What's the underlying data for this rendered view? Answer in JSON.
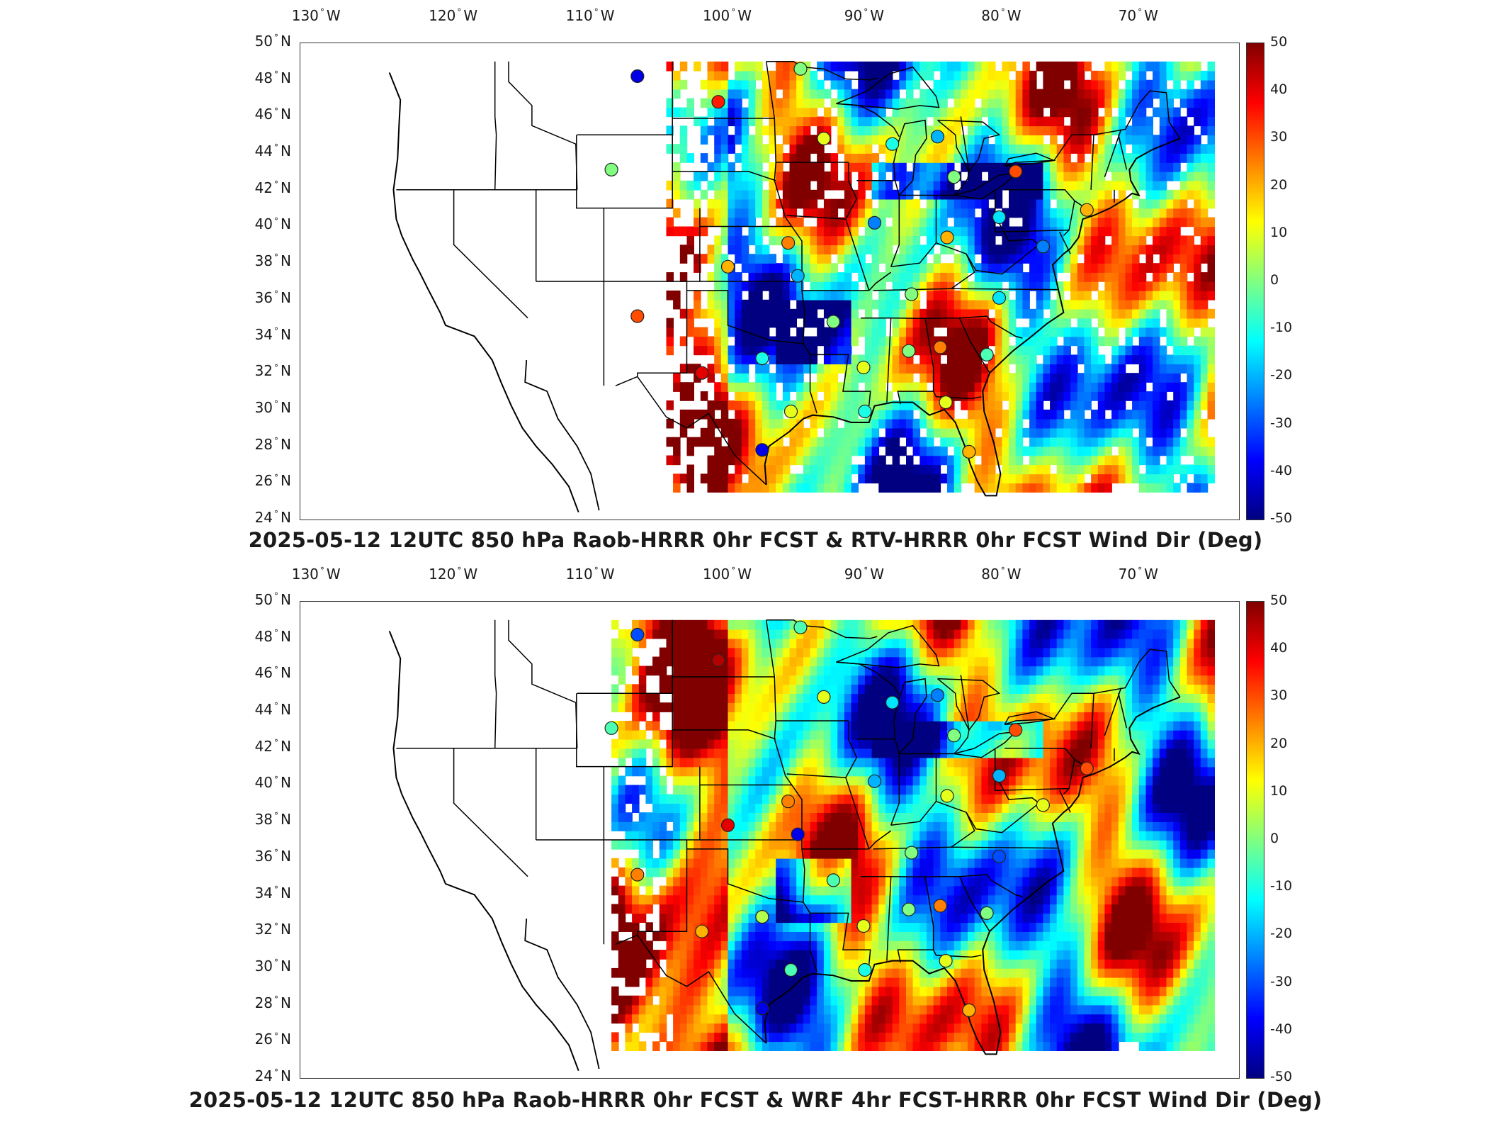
{
  "figure": {
    "panels": [
      {
        "title": "2025-05-12 12UTC 850 hPa Raob-HRRR 0hr FCST & RTV-HRRR 0hr FCST Wind Dir (Deg)",
        "lon_labels": [
          "130",
          "120",
          "110",
          "100",
          "90",
          "80",
          "70"
        ],
        "lat_labels": [
          "50",
          "48",
          "46",
          "44",
          "42",
          "40",
          "38",
          "36",
          "34",
          "32",
          "30",
          "28",
          "26",
          "24"
        ],
        "colorbar_ticks": [
          "50",
          "40",
          "30",
          "20",
          "10",
          "0",
          "-10",
          "-20",
          "-30",
          "-40",
          "-50"
        ],
        "field_style": "sparse"
      },
      {
        "title": "2025-05-12 12UTC 850 hPa Raob-HRRR 0hr FCST & WRF 4hr FCST-HRRR 0hr FCST Wind Dir (Deg)",
        "lon_labels": [
          "130",
          "120",
          "110",
          "100",
          "90",
          "80",
          "70"
        ],
        "lat_labels": [
          "50",
          "48",
          "46",
          "44",
          "42",
          "40",
          "38",
          "36",
          "34",
          "32",
          "30",
          "28",
          "26",
          "24"
        ],
        "colorbar_ticks": [
          "50",
          "40",
          "30",
          "20",
          "10",
          "0",
          "-10",
          "-20",
          "-30",
          "-40",
          "-50"
        ],
        "field_style": "full"
      }
    ],
    "lon_hemisphere": "W",
    "lat_hemisphere": "N",
    "color_range": [
      -50,
      50
    ],
    "colormap": "jet",
    "stations": [
      {
        "lon": -106.6,
        "lat": 48.2,
        "v": [
          -40,
          -30
        ]
      },
      {
        "lon": -100.7,
        "lat": 46.8,
        "v": [
          35,
          45
        ]
      },
      {
        "lon": -108.5,
        "lat": 43.1,
        "v": [
          0,
          -5
        ]
      },
      {
        "lon": -93.0,
        "lat": 44.8,
        "v": [
          10,
          10
        ]
      },
      {
        "lon": -88.0,
        "lat": 44.5,
        "v": [
          -10,
          -15
        ]
      },
      {
        "lon": -84.7,
        "lat": 44.9,
        "v": [
          -20,
          -25
        ]
      },
      {
        "lon": -83.5,
        "lat": 42.7,
        "v": [
          0,
          0
        ]
      },
      {
        "lon": -79.0,
        "lat": 43.0,
        "v": [
          30,
          30
        ]
      },
      {
        "lon": -89.3,
        "lat": 40.2,
        "v": [
          -25,
          -20
        ]
      },
      {
        "lon": -84.0,
        "lat": 39.4,
        "v": [
          20,
          10
        ]
      },
      {
        "lon": -80.2,
        "lat": 40.5,
        "v": [
          -15,
          -20
        ]
      },
      {
        "lon": -95.6,
        "lat": 39.1,
        "v": [
          25,
          25
        ]
      },
      {
        "lon": -100.0,
        "lat": 37.8,
        "v": [
          20,
          40
        ]
      },
      {
        "lon": -94.9,
        "lat": 37.3,
        "v": [
          -20,
          -40
        ]
      },
      {
        "lon": -86.6,
        "lat": 36.3,
        "v": [
          0,
          0
        ]
      },
      {
        "lon": -80.2,
        "lat": 36.1,
        "v": [
          -15,
          -30
        ]
      },
      {
        "lon": -106.6,
        "lat": 35.1,
        "v": [
          30,
          25
        ]
      },
      {
        "lon": -92.3,
        "lat": 34.8,
        "v": [
          0,
          -5
        ]
      },
      {
        "lon": -97.5,
        "lat": 32.8,
        "v": [
          -10,
          5
        ]
      },
      {
        "lon": -101.9,
        "lat": 32.0,
        "v": [
          40,
          20
        ]
      },
      {
        "lon": -90.1,
        "lat": 32.3,
        "v": [
          10,
          10
        ]
      },
      {
        "lon": -86.8,
        "lat": 33.2,
        "v": [
          0,
          0
        ]
      },
      {
        "lon": -84.5,
        "lat": 33.4,
        "v": [
          25,
          25
        ]
      },
      {
        "lon": -81.1,
        "lat": 33.0,
        "v": [
          -5,
          0
        ]
      },
      {
        "lon": -82.4,
        "lat": 27.7,
        "v": [
          20,
          20
        ]
      },
      {
        "lon": -97.5,
        "lat": 27.8,
        "v": [
          -40,
          -40
        ]
      },
      {
        "lon": -77.0,
        "lat": 38.9,
        "v": [
          -25,
          10
        ]
      },
      {
        "lon": -73.8,
        "lat": 40.9,
        "v": [
          20,
          30
        ]
      },
      {
        "lon": -84.1,
        "lat": 30.4,
        "v": [
          10,
          10
        ]
      },
      {
        "lon": -90.0,
        "lat": 29.9,
        "v": [
          -10,
          -10
        ]
      },
      {
        "lon": -95.4,
        "lat": 29.9,
        "v": [
          10,
          -5
        ]
      },
      {
        "lon": -94.7,
        "lat": 48.6,
        "v": [
          0,
          -5
        ]
      }
    ]
  }
}
